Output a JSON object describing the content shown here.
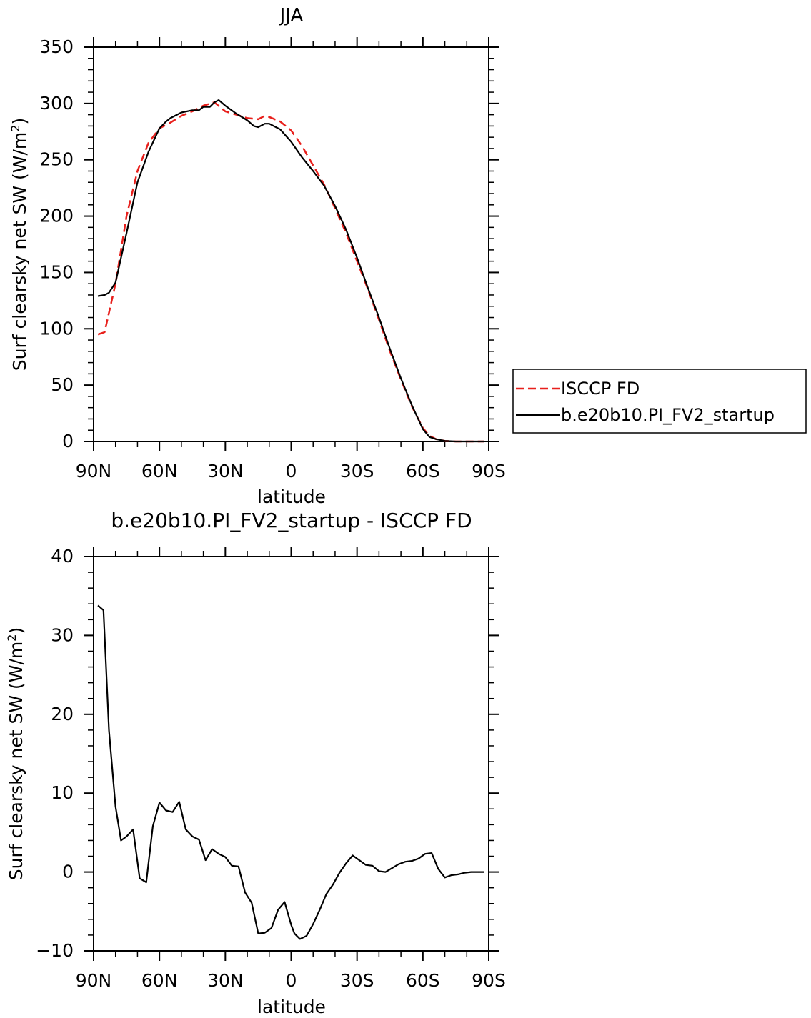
{
  "chart_data": [
    {
      "type": "line",
      "title": "JJA",
      "xlabel": "latitude",
      "ylabel": "Surf clearsky net SW (W/m",
      "ylabel_sup": "2",
      "ylabel_close": ")",
      "xlim": [
        90,
        -90
      ],
      "ylim": [
        0,
        350
      ],
      "yticks": [
        0,
        50,
        100,
        150,
        200,
        250,
        300,
        350
      ],
      "yticklabels": [
        "0",
        "50",
        "100",
        "150",
        "200",
        "250",
        "300",
        "350"
      ],
      "xticks": [
        90,
        60,
        30,
        0,
        -30,
        -60,
        -90
      ],
      "xticklabels": [
        "90N",
        "60N",
        "30N",
        "0",
        "30S",
        "60S",
        "90S"
      ],
      "legend": "right",
      "series": [
        {
          "name": "ISCCP FD",
          "color": "#e8201c",
          "dash": "dashed",
          "x": [
            88,
            85,
            80,
            75,
            70,
            65,
            60,
            55,
            50,
            45,
            40,
            35,
            30,
            25,
            20,
            15,
            12,
            10,
            5,
            0,
            -5,
            -10,
            -15,
            -20,
            -25,
            -30,
            -35,
            -40,
            -45,
            -50,
            -55,
            -60,
            -63,
            -66,
            -70,
            -75,
            -80,
            -85,
            -88
          ],
          "y": [
            95,
            97,
            140,
            200,
            240,
            265,
            278,
            283,
            289,
            293,
            298,
            301,
            293,
            290,
            287,
            286,
            289,
            288,
            284,
            276,
            262,
            245,
            228,
            207,
            185,
            160,
            135,
            108,
            80,
            55,
            31,
            12,
            5,
            2,
            0.5,
            0,
            0,
            0,
            0
          ]
        },
        {
          "name": "b.e20b10.PI_FV2_startup",
          "color": "#000000",
          "dash": "solid",
          "x": [
            88,
            85,
            83,
            80,
            75,
            70,
            65,
            60,
            57,
            55,
            50,
            45,
            42,
            40,
            37,
            35,
            33,
            30,
            25,
            20,
            17,
            15,
            12,
            10,
            5,
            0,
            -5,
            -10,
            -15,
            -20,
            -25,
            -30,
            -35,
            -40,
            -45,
            -50,
            -55,
            -60,
            -63,
            -66,
            -70,
            -75,
            -80,
            -85,
            -88
          ],
          "y": [
            129,
            130,
            132,
            141,
            185,
            230,
            257,
            278,
            284,
            287,
            292,
            294,
            294,
            297,
            297,
            301,
            303,
            298,
            291,
            285,
            280,
            279,
            282,
            282,
            277,
            266,
            252,
            240,
            227,
            209,
            188,
            163,
            136,
            110,
            82,
            56,
            32,
            11,
            4,
            2,
            0.5,
            0,
            0,
            0,
            0
          ]
        }
      ]
    },
    {
      "type": "line",
      "title": "b.e20b10.PI_FV2_startup - ISCCP FD",
      "xlabel": "latitude",
      "ylabel": "Surf clearsky net SW (W/m",
      "ylabel_sup": "2",
      "ylabel_close": ")",
      "xlim": [
        90,
        -90
      ],
      "ylim": [
        -10,
        40
      ],
      "yticks": [
        -10,
        0,
        10,
        20,
        30,
        40
      ],
      "yticklabels": [
        "−10",
        "0",
        "10",
        "20",
        "30",
        "40"
      ],
      "xticks": [
        90,
        60,
        30,
        0,
        -30,
        -60,
        -90
      ],
      "xticklabels": [
        "90N",
        "60N",
        "30N",
        "0",
        "30S",
        "60S",
        "90S"
      ],
      "series": [
        {
          "color": "#000000",
          "dash": "solid",
          "x": [
            88,
            85.5,
            83,
            80,
            77.5,
            75,
            72,
            69,
            66,
            63,
            60,
            57,
            54,
            51,
            48,
            45,
            42,
            39,
            36,
            33,
            30,
            27,
            24,
            21,
            18,
            15,
            12,
            9,
            6,
            3,
            0,
            -1.5,
            -4,
            -7,
            -10,
            -13,
            -16,
            -19,
            -22,
            -25,
            -28,
            -31,
            -34,
            -37,
            -40,
            -43,
            -46,
            -49,
            -52,
            -55,
            -58,
            -61,
            -64,
            -67,
            -70,
            -73,
            -76,
            -79,
            -82,
            -85,
            -88
          ],
          "y": [
            33.8,
            33.2,
            18,
            8.3,
            4,
            4.5,
            5.4,
            -0.8,
            -1.3,
            5.8,
            8.8,
            7.8,
            7.6,
            8.9,
            5.4,
            4.5,
            4.1,
            1.5,
            2.9,
            2.3,
            1.9,
            0.8,
            0.7,
            -2.6,
            -3.9,
            -7.8,
            -7.7,
            -7.1,
            -4.8,
            -3.8,
            -6.7,
            -7.8,
            -8.5,
            -8.1,
            -6.6,
            -4.8,
            -2.8,
            -1.6,
            -0.1,
            1.1,
            2.1,
            1.5,
            0.9,
            0.8,
            0.1,
            0.0,
            0.5,
            1.0,
            1.3,
            1.4,
            1.7,
            2.3,
            2.4,
            0.4,
            -0.7,
            -0.4,
            -0.3,
            -0.1,
            0.0,
            0.0,
            0.0
          ]
        }
      ]
    }
  ]
}
